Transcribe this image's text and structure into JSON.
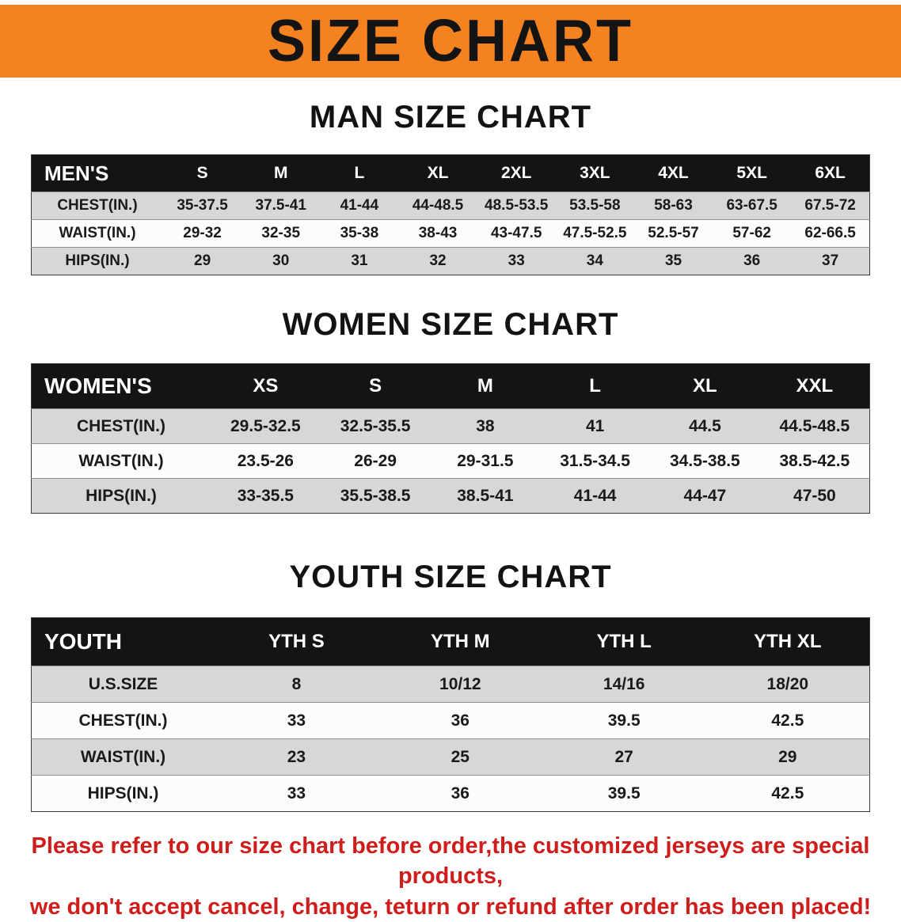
{
  "banner": {
    "title": "SIZE CHART",
    "bg_color": "#f58220",
    "text_color": "#141414"
  },
  "sections": [
    {
      "id": "men",
      "heading": "MAN SIZE CHART",
      "table": {
        "header": [
          "MEN'S",
          "S",
          "M",
          "L",
          "XL",
          "2XL",
          "3XL",
          "4XL",
          "5XL",
          "6XL"
        ],
        "rows": [
          [
            "CHEST(IN.)",
            "35-37.5",
            "37.5-41",
            "41-44",
            "44-48.5",
            "48.5-53.5",
            "53.5-58",
            "58-63",
            "63-67.5",
            "67.5-72"
          ],
          [
            "WAIST(IN.)",
            "29-32",
            "32-35",
            "35-38",
            "38-43",
            "43-47.5",
            "47.5-52.5",
            "52.5-57",
            "57-62",
            "62-66.5"
          ],
          [
            "HIPS(IN.)",
            "29",
            "30",
            "31",
            "32",
            "33",
            "34",
            "35",
            "36",
            "37"
          ]
        ]
      }
    },
    {
      "id": "women",
      "heading": "WOMEN SIZE CHART",
      "table": {
        "header": [
          "WOMEN'S",
          "XS",
          "S",
          "M",
          "L",
          "XL",
          "XXL"
        ],
        "rows": [
          [
            "CHEST(IN.)",
            "29.5-32.5",
            "32.5-35.5",
            "38",
            "41",
            "44.5",
            "44.5-48.5"
          ],
          [
            "WAIST(IN.)",
            "23.5-26",
            "26-29",
            "29-31.5",
            "31.5-34.5",
            "34.5-38.5",
            "38.5-42.5"
          ],
          [
            "HIPS(IN.)",
            "33-35.5",
            "35.5-38.5",
            "38.5-41",
            "41-44",
            "44-47",
            "47-50"
          ]
        ]
      }
    },
    {
      "id": "youth",
      "heading": "YOUTH SIZE CHART",
      "table": {
        "header": [
          "YOUTH",
          "YTH S",
          "YTH M",
          "YTH L",
          "YTH XL"
        ],
        "rows": [
          [
            "U.S.SIZE",
            "8",
            "10/12",
            "14/16",
            "18/20"
          ],
          [
            "CHEST(IN.)",
            "33",
            "36",
            "39.5",
            "42.5"
          ],
          [
            "WAIST(IN.)",
            "23",
            "25",
            "27",
            "29"
          ],
          [
            "HIPS(IN.)",
            "33",
            "36",
            "39.5",
            "42.5"
          ]
        ]
      }
    }
  ],
  "disclaimer": {
    "lines": [
      "Please refer to our size chart before order,the customized jerseys are special products,",
      "we don't accept cancel, change, teturn or refund after order has been placed!"
    ],
    "color": "#cf1d1c"
  }
}
